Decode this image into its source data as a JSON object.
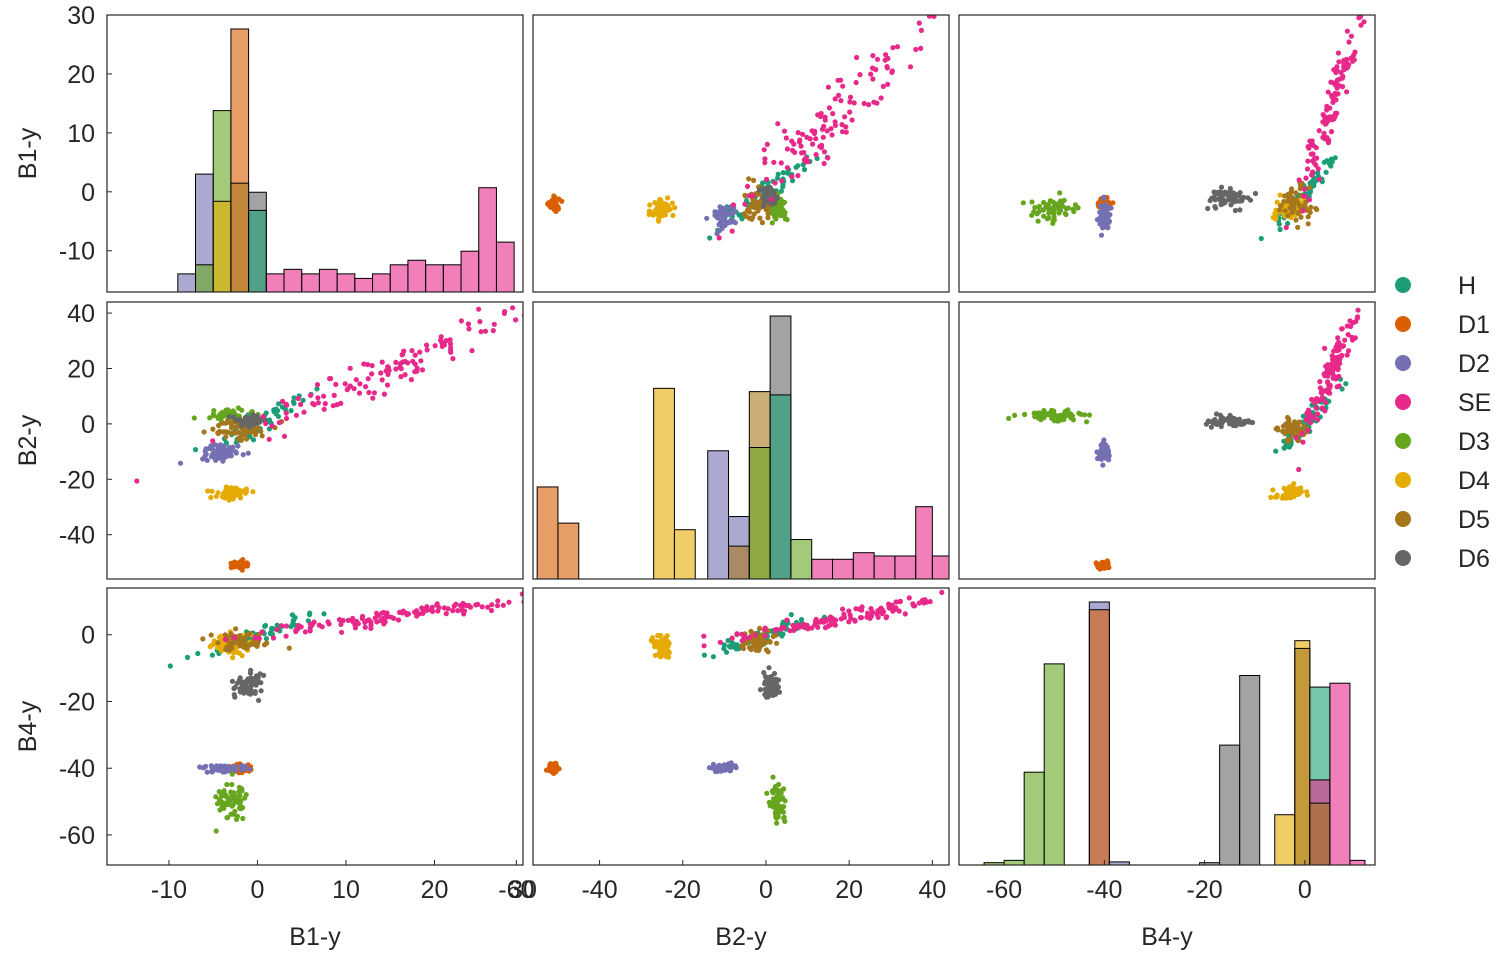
{
  "chart_data": {
    "type": "scatter",
    "layout": "pair-plot matrix with diagonal histograms",
    "variables": [
      "B1-y",
      "B2-y",
      "B4-y"
    ],
    "axis_labels": {
      "x": [
        "B1-y",
        "B2-y",
        "B4-y"
      ],
      "y": [
        "B1-y",
        "B2-y",
        "B4-y"
      ]
    },
    "ranges": {
      "B1-y": [
        -17,
        30
      ],
      "B2-y": [
        -56,
        44
      ],
      "B4-y": [
        -69,
        14
      ]
    },
    "ticks": {
      "B1-y": {
        "row": [
          -10,
          0,
          10,
          20,
          30
        ],
        "col": [
          -10,
          0,
          10,
          20,
          30
        ]
      },
      "B2-y": {
        "row": [
          -40,
          -20,
          0,
          20,
          40
        ],
        "col": [
          -60,
          -40,
          -20,
          0,
          20,
          40
        ]
      },
      "B4-y": {
        "row": [
          -60,
          -40,
          -20,
          0
        ],
        "col": [
          -60,
          -40,
          -20,
          0
        ]
      }
    },
    "legend": {
      "placement": "right",
      "entries": [
        "H",
        "D1",
        "D2",
        "SE",
        "D3",
        "D4",
        "D5",
        "D6"
      ]
    },
    "colors": {
      "H": "#1b9e77",
      "D1": "#d95f02",
      "D2": "#7570b3",
      "SE": "#e7298a",
      "D3": "#66a61e",
      "D4": "#e6ab02",
      "D5": "#a6761d",
      "D6": "#666666"
    },
    "groups": [
      {
        "name": "H",
        "center": {
          "B1-y": 0,
          "B2-y": 0,
          "B4-y": 0
        },
        "spread": {
          "B1-y": 3,
          "B2-y": 6,
          "B4-y": 3
        }
      },
      {
        "name": "D1",
        "center": {
          "B1-y": -2,
          "B2-y": -51,
          "B4-y": -40
        },
        "spread": {
          "B1-y": 0.5,
          "B2-y": 0.6,
          "B4-y": 0.6
        }
      },
      {
        "name": "D2",
        "center": {
          "B1-y": -4,
          "B2-y": -10,
          "B4-y": -40
        },
        "spread": {
          "B1-y": 1.2,
          "B2-y": 1.5,
          "B4-y": 0.6
        }
      },
      {
        "name": "SE",
        "center": {
          "B1-y": 14,
          "B2-y": 18,
          "B4-y": 5
        },
        "spread": {
          "B1-y": 8,
          "B2-y": 12,
          "B4-y": 3
        }
      },
      {
        "name": "D3",
        "center": {
          "B1-y": -3,
          "B2-y": 3,
          "B4-y": -50
        },
        "spread": {
          "B1-y": 1.0,
          "B2-y": 1.0,
          "B4-y": 3
        }
      },
      {
        "name": "D4",
        "center": {
          "B1-y": -3,
          "B2-y": -25,
          "B4-y": -3
        },
        "spread": {
          "B1-y": 1.0,
          "B2-y": 1.2,
          "B4-y": 1.5
        }
      },
      {
        "name": "D5",
        "center": {
          "B1-y": -2,
          "B2-y": -2,
          "B4-y": -2
        },
        "spread": {
          "B1-y": 1.5,
          "B2-y": 2,
          "B4-y": 1.5
        }
      },
      {
        "name": "D6",
        "center": {
          "B1-y": -1,
          "B2-y": 1,
          "B4-y": -15
        },
        "spread": {
          "B1-y": 0.8,
          "B2-y": 1.0,
          "B4-y": 2
        }
      }
    ],
    "histograms": {
      "B1-y": {
        "range": [
          -17,
          30
        ],
        "max_count": 29,
        "bars": [
          {
            "group": "D2",
            "x0": -7,
            "x1": -5,
            "h": 13
          },
          {
            "group": "D2",
            "x0": -9,
            "x1": -7,
            "h": 2
          },
          {
            "group": "D3",
            "x0": -5,
            "x1": -3,
            "h": 20
          },
          {
            "group": "D3",
            "x0": -7,
            "x1": -5,
            "h": 3
          },
          {
            "group": "D4",
            "x0": -5,
            "x1": -3,
            "h": 10
          },
          {
            "group": "D1",
            "x0": -3,
            "x1": -1,
            "h": 29
          },
          {
            "group": "D5",
            "x0": -3,
            "x1": -1,
            "h": 12
          },
          {
            "group": "D6",
            "x0": -1,
            "x1": 1,
            "h": 11
          },
          {
            "group": "H",
            "x0": -1,
            "x1": 1,
            "h": 9
          },
          {
            "group": "SE",
            "x0": 1,
            "x1": 3,
            "h": 2
          },
          {
            "group": "SE",
            "x0": 3,
            "x1": 5,
            "h": 2.5
          },
          {
            "group": "SE",
            "x0": 5,
            "x1": 7,
            "h": 2
          },
          {
            "group": "SE",
            "x0": 7,
            "x1": 9,
            "h": 2.5
          },
          {
            "group": "SE",
            "x0": 9,
            "x1": 11,
            "h": 2
          },
          {
            "group": "SE",
            "x0": 11,
            "x1": 13,
            "h": 1.5
          },
          {
            "group": "SE",
            "x0": 13,
            "x1": 15,
            "h": 2
          },
          {
            "group": "SE",
            "x0": 15,
            "x1": 17,
            "h": 3
          },
          {
            "group": "SE",
            "x0": 17,
            "x1": 19,
            "h": 3.5
          },
          {
            "group": "SE",
            "x0": 19,
            "x1": 21,
            "h": 3
          },
          {
            "group": "SE",
            "x0": 21,
            "x1": 23,
            "h": 3
          },
          {
            "group": "SE",
            "x0": 23,
            "x1": 25,
            "h": 4.5
          },
          {
            "group": "SE",
            "x0": 25,
            "x1": 27,
            "h": 11.5
          },
          {
            "group": "SE",
            "x0": 27,
            "x1": 29,
            "h": 5.5
          }
        ]
      },
      "B2-y": {
        "range": [
          -56,
          44
        ],
        "max_count": 40,
        "bars": [
          {
            "group": "D1",
            "x0": -55,
            "x1": -50,
            "h": 14
          },
          {
            "group": "D1",
            "x0": -50,
            "x1": -45,
            "h": 8.5
          },
          {
            "group": "D4",
            "x0": -27,
            "x1": -22,
            "h": 29
          },
          {
            "group": "D4",
            "x0": -22,
            "x1": -17,
            "h": 7.5
          },
          {
            "group": "D2",
            "x0": -14,
            "x1": -9,
            "h": 19.5
          },
          {
            "group": "D2",
            "x0": -9,
            "x1": -4,
            "h": 9.5
          },
          {
            "group": "D5",
            "x0": -9,
            "x1": -4,
            "h": 5
          },
          {
            "group": "D5",
            "x0": -4,
            "x1": 1,
            "h": 28.5
          },
          {
            "group": "D3",
            "x0": -4,
            "x1": 1,
            "h": 20
          },
          {
            "group": "D6",
            "x0": 1,
            "x1": 6,
            "h": 40
          },
          {
            "group": "H",
            "x0": 1,
            "x1": 6,
            "h": 28
          },
          {
            "group": "D3",
            "x0": 6,
            "x1": 11,
            "h": 6
          },
          {
            "group": "SE",
            "x0": 11,
            "x1": 16,
            "h": 3
          },
          {
            "group": "SE",
            "x0": 16,
            "x1": 21,
            "h": 3
          },
          {
            "group": "SE",
            "x0": 21,
            "x1": 26,
            "h": 4
          },
          {
            "group": "SE",
            "x0": 26,
            "x1": 31,
            "h": 3.5
          },
          {
            "group": "SE",
            "x0": 31,
            "x1": 36,
            "h": 3.5
          },
          {
            "group": "SE",
            "x0": 36,
            "x1": 40,
            "h": 11
          },
          {
            "group": "SE",
            "x0": 40,
            "x1": 44,
            "h": 3.5
          }
        ]
      },
      "B4-y": {
        "range": [
          -69,
          14
        ],
        "max_count": 34,
        "bars": [
          {
            "group": "D3",
            "x0": -64,
            "x1": -60,
            "h": 0.3
          },
          {
            "group": "D3",
            "x0": -60,
            "x1": -56,
            "h": 0.6
          },
          {
            "group": "D3",
            "x0": -56,
            "x1": -52,
            "h": 12
          },
          {
            "group": "D3",
            "x0": -52,
            "x1": -48,
            "h": 26
          },
          {
            "group": "D2",
            "x0": -43,
            "x1": -39,
            "h": 34
          },
          {
            "group": "D1",
            "x0": -43,
            "x1": -39,
            "h": 33
          },
          {
            "group": "D2",
            "x0": -39,
            "x1": -35,
            "h": 0.4
          },
          {
            "group": "D6",
            "x0": -21,
            "x1": -17,
            "h": 0.3
          },
          {
            "group": "D6",
            "x0": -17,
            "x1": -13,
            "h": 15.5
          },
          {
            "group": "D6",
            "x0": -13,
            "x1": -9,
            "h": 24.5
          },
          {
            "group": "D4",
            "x0": -6,
            "x1": -2,
            "h": 6.5
          },
          {
            "group": "D4",
            "x0": -2,
            "x1": 1,
            "h": 29
          },
          {
            "group": "D5",
            "x0": -2,
            "x1": 1,
            "h": 28
          },
          {
            "group": "H",
            "x0": 1,
            "x1": 5,
            "h": 23
          },
          {
            "group": "SE",
            "x0": 1,
            "x1": 5,
            "h": 11
          },
          {
            "group": "D5",
            "x0": 1,
            "x1": 5,
            "h": 8
          },
          {
            "group": "SE",
            "x0": 5,
            "x1": 9,
            "h": 23.5
          },
          {
            "group": "SE",
            "x0": 9,
            "x1": 12,
            "h": 0.6
          }
        ]
      }
    }
  }
}
